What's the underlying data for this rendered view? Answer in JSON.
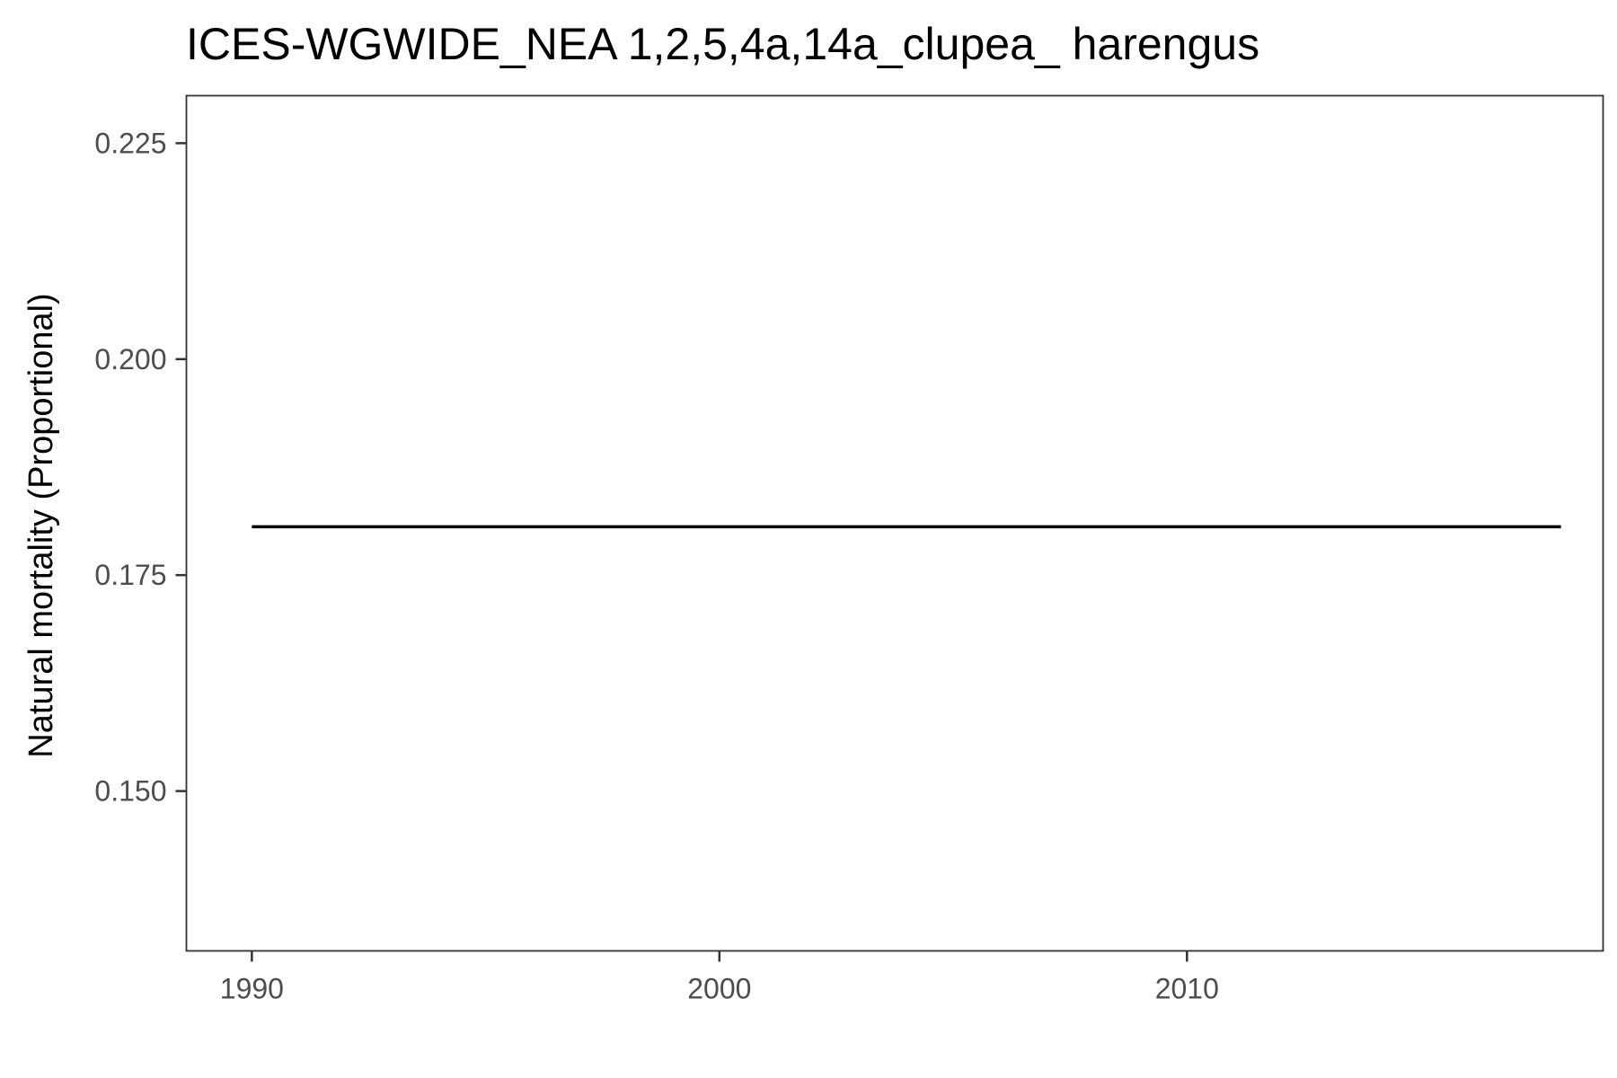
{
  "chart_data": {
    "type": "line",
    "title": "ICES-WGWIDE_NEA 1,2,5,4a,14a_clupea_ harengus",
    "xlabel": "",
    "ylabel": "Natural mortality (Proportional)",
    "xlim": [
      1988.6,
      2018.9
    ],
    "ylim": [
      0.1315,
      0.2305
    ],
    "x_ticks": [
      1990,
      2000,
      2010
    ],
    "x_tick_labels": [
      "1990",
      "2000",
      "2010"
    ],
    "y_ticks": [
      0.15,
      0.175,
      0.2,
      0.225
    ],
    "y_tick_labels": [
      "0.150",
      "0.175",
      "0.200",
      "0.225"
    ],
    "grid": false,
    "legend": "none",
    "series": [
      {
        "color": "#000000",
        "x": [
          1990,
          1991,
          1992,
          1993,
          1994,
          1995,
          1996,
          1997,
          1998,
          1999,
          2000,
          2001,
          2002,
          2003,
          2004,
          2005,
          2006,
          2007,
          2008,
          2009,
          2010,
          2011,
          2012,
          2013,
          2014,
          2015,
          2016,
          2017,
          2018
        ],
        "y": [
          0.1806,
          0.1806,
          0.1806,
          0.1806,
          0.1806,
          0.1806,
          0.1806,
          0.1806,
          0.1806,
          0.1806,
          0.1806,
          0.1806,
          0.1806,
          0.1806,
          0.1806,
          0.1806,
          0.1806,
          0.1806,
          0.1806,
          0.1806,
          0.1806,
          0.1806,
          0.1806,
          0.1806,
          0.1806,
          0.1806,
          0.1806,
          0.1806,
          0.1806
        ]
      }
    ]
  }
}
